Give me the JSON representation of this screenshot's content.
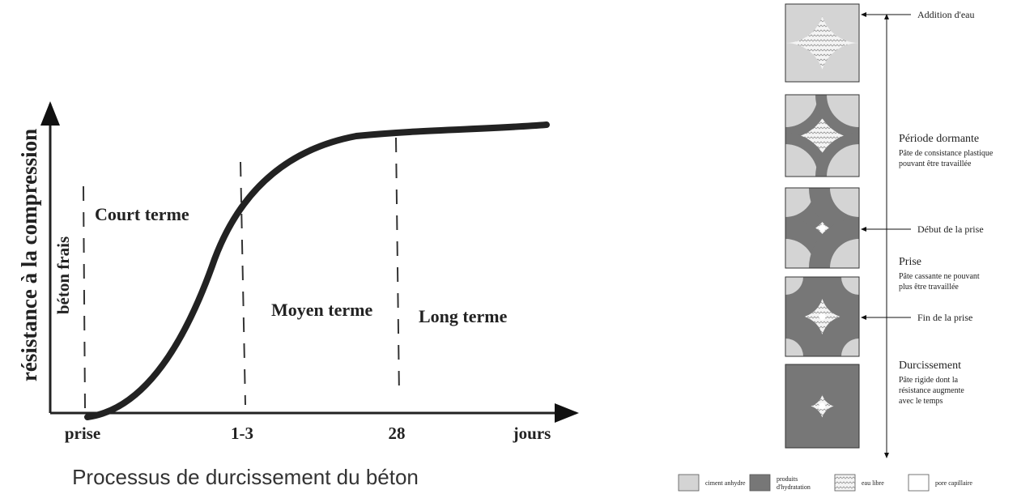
{
  "left": {
    "y_axis_label": "résistance à la compression",
    "x_labels": [
      "prise",
      "1-3",
      "28",
      "jours"
    ],
    "zones": {
      "fresh": "béton frais",
      "short": "Court terme",
      "medium": "Moyen terme",
      "long": "Long terme"
    },
    "caption": "Processus de durcissement du béton"
  },
  "right": {
    "events": [
      "Addition d'eau",
      "Début de la prise",
      "Fin de la prise"
    ],
    "phases": [
      {
        "title": "Période dormante",
        "description": [
          "Pâte de consistance plastique",
          "pouvant être travaillée"
        ]
      },
      {
        "title": "Prise",
        "description": [
          "Pâte cassante ne pouvant",
          "plus être travaillée"
        ]
      },
      {
        "title": "Durcissement",
        "description": [
          "Pâte rigide dont la",
          "résistance augmente",
          "avec le temps"
        ]
      }
    ],
    "legend": [
      [
        "ciment anhydre"
      ],
      [
        "produits",
        "d'hydratation"
      ],
      [
        "eau libre"
      ],
      [
        "pore capillaire"
      ]
    ]
  }
}
